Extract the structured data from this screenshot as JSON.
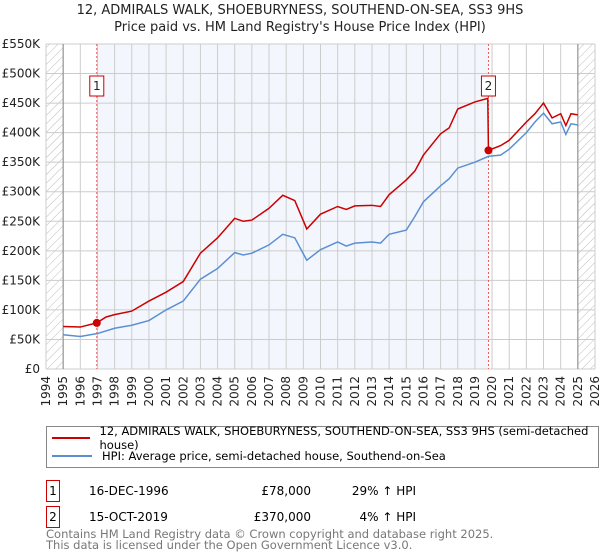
{
  "chart_data": {
    "type": "line",
    "title": "12, ADMIRALS WALK, SHOEBURYNESS, SOUTHEND-ON-SEA, SS3 9HS",
    "subtitle": "Price paid vs. HM Land Registry's House Price Index (HPI)",
    "xlim": [
      1994,
      2026
    ],
    "ylim": [
      0,
      550000
    ],
    "x_ticks": [
      "1994",
      "1995",
      "1996",
      "1997",
      "1998",
      "1999",
      "2000",
      "2001",
      "2002",
      "2003",
      "2004",
      "2005",
      "2006",
      "2007",
      "2008",
      "2009",
      "2010",
      "2011",
      "2012",
      "2013",
      "2014",
      "2015",
      "2016",
      "2017",
      "2018",
      "2019",
      "2020",
      "2021",
      "2022",
      "2023",
      "2024",
      "2025",
      "2026"
    ],
    "y_ticks": [
      {
        "v": 0,
        "label": "£0"
      },
      {
        "v": 50000,
        "label": "£50K"
      },
      {
        "v": 100000,
        "label": "£100K"
      },
      {
        "v": 150000,
        "label": "£150K"
      },
      {
        "v": 200000,
        "label": "£200K"
      },
      {
        "v": 250000,
        "label": "£250K"
      },
      {
        "v": 300000,
        "label": "£300K"
      },
      {
        "v": 350000,
        "label": "£350K"
      },
      {
        "v": 400000,
        "label": "£400K"
      },
      {
        "v": 450000,
        "label": "£450K"
      },
      {
        "v": 500000,
        "label": "£500K"
      },
      {
        "v": 550000,
        "label": "£550K"
      }
    ],
    "grid": true,
    "series": [
      {
        "name": "12, ADMIRALS WALK, SHOEBURYNESS, SOUTHEND-ON-SEA, SS3 9HS (semi-detached house)",
        "color": "#cc0000",
        "x": [
          1995,
          1996,
          1996.96,
          1997.5,
          1998,
          1999,
          2000,
          2001,
          2002,
          2003,
          2004,
          2005,
          2005.5,
          2006,
          2007,
          2007.8,
          2008.5,
          2009.2,
          2010,
          2011,
          2011.5,
          2012,
          2013,
          2013.5,
          2014,
          2015,
          2015.5,
          2016,
          2017,
          2017.5,
          2018,
          2019,
          2019.75,
          2019.79,
          2020.5,
          2021,
          2022,
          2022.5,
          2023,
          2023.5,
          2024,
          2024.3,
          2024.6,
          2025
        ],
        "y": [
          72000,
          71000,
          78000,
          88000,
          92000,
          98000,
          115000,
          130000,
          148000,
          196000,
          222000,
          255000,
          250000,
          252000,
          272000,
          294000,
          285000,
          237000,
          262000,
          275000,
          270000,
          276000,
          277000,
          275000,
          295000,
          320000,
          335000,
          362000,
          398000,
          408000,
          440000,
          452000,
          458000,
          370000,
          378000,
          387000,
          418000,
          432000,
          450000,
          425000,
          432000,
          412000,
          432000,
          430000
        ]
      },
      {
        "name": "HPI: Average price, semi-detached house, Southend-on-Sea",
        "color": "#5b8fd4",
        "x": [
          1995,
          1996,
          1997,
          1998,
          1999,
          2000,
          2001,
          2002,
          2003,
          2004,
          2005,
          2005.5,
          2006,
          2007,
          2007.8,
          2008.5,
          2009.2,
          2010,
          2011,
          2011.5,
          2012,
          2013,
          2013.5,
          2014,
          2015,
          2015.5,
          2016,
          2017,
          2017.5,
          2018,
          2019,
          2019.8,
          2020.5,
          2021,
          2022,
          2022.5,
          2023,
          2023.5,
          2024,
          2024.3,
          2024.6,
          2025
        ],
        "y": [
          58000,
          55000,
          60000,
          69000,
          74000,
          82000,
          100000,
          115000,
          152000,
          170000,
          197000,
          193000,
          196000,
          210000,
          228000,
          222000,
          184000,
          202000,
          215000,
          208000,
          213000,
          215000,
          213000,
          228000,
          235000,
          258000,
          283000,
          310000,
          322000,
          340000,
          350000,
          360000,
          362000,
          372000,
          400000,
          418000,
          433000,
          415000,
          418000,
          397000,
          415000,
          413000
        ]
      }
    ],
    "annotations": [
      {
        "label": "1",
        "x": 1996.96,
        "y": 78000
      },
      {
        "label": "2",
        "x": 2019.79,
        "y": 370000
      }
    ]
  },
  "sales": [
    {
      "num": "1",
      "date": "16-DEC-1996",
      "price": "£78,000",
      "hpi": "29% ↑ HPI"
    },
    {
      "num": "2",
      "date": "15-OCT-2019",
      "price": "£370,000",
      "hpi": "4% ↑ HPI"
    }
  ],
  "footer": {
    "line1": "Contains HM Land Registry data © Crown copyright and database right 2025.",
    "line2": "This data is licensed under the Open Government Licence v3.0."
  }
}
